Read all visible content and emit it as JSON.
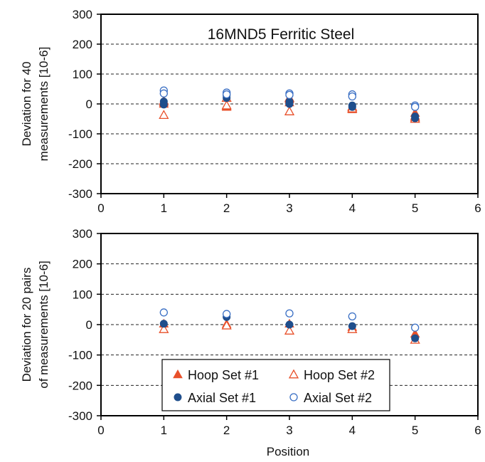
{
  "chart_data": [
    {
      "type": "scatter",
      "title": "16MND5 Ferritic Steel",
      "ylabel_lines": [
        "Deviation for 40",
        "measurements [10-6]"
      ],
      "xlabel": "",
      "xlim": [
        0,
        6
      ],
      "ylim": [
        -300,
        300
      ],
      "xticks": [
        "0",
        "1",
        "2",
        "3",
        "4",
        "5",
        "6"
      ],
      "yticks": [
        "300",
        "200",
        "100",
        "0",
        "-100",
        "-200",
        "-300"
      ],
      "grid": "horizontal dashed",
      "series": [
        {
          "name": "Hoop Set #1",
          "marker": "triangle-filled",
          "color": "#e8502a",
          "x": [
            1,
            1,
            2,
            2,
            3,
            3,
            4,
            4,
            5,
            5
          ],
          "y": [
            5,
            0,
            -8,
            -10,
            15,
            5,
            -15,
            -18,
            -30,
            -40
          ]
        },
        {
          "name": "Hoop Set #2",
          "marker": "triangle-open",
          "color": "#e8502a",
          "x": [
            1,
            1,
            2,
            2,
            3,
            3,
            4,
            4,
            5,
            5
          ],
          "y": [
            10,
            -37,
            20,
            -5,
            20,
            -25,
            -10,
            -15,
            -45,
            -50
          ]
        },
        {
          "name": "Axial Set #1",
          "marker": "circle-filled",
          "color": "#1f4e8c",
          "x": [
            1,
            1,
            2,
            2,
            3,
            3,
            4,
            4,
            5,
            5
          ],
          "y": [
            8,
            -2,
            28,
            20,
            8,
            0,
            -5,
            -10,
            -42,
            -48
          ]
        },
        {
          "name": "Axial Set #2",
          "marker": "circle-open",
          "color": "#3a6fc4",
          "x": [
            1,
            1,
            2,
            2,
            3,
            3,
            4,
            4,
            5,
            5
          ],
          "y": [
            45,
            35,
            38,
            32,
            35,
            30,
            32,
            25,
            -5,
            -10
          ]
        }
      ]
    },
    {
      "type": "scatter",
      "title": "",
      "ylabel_lines": [
        "Deviation for 20 pairs",
        "of measurements [10-6]"
      ],
      "xlabel": "Position",
      "xlim": [
        0,
        6
      ],
      "ylim": [
        -300,
        300
      ],
      "xticks": [
        "0",
        "1",
        "2",
        "3",
        "4",
        "5",
        "6"
      ],
      "yticks": [
        "300",
        "200",
        "100",
        "0",
        "-100",
        "-200",
        "-300"
      ],
      "grid": "horizontal dashed",
      "legend": "bottom-center",
      "series": [
        {
          "name": "Hoop Set #1",
          "marker": "triangle-filled",
          "color": "#e8502a",
          "x": [
            1,
            2,
            3,
            4,
            5
          ],
          "y": [
            3,
            2,
            3,
            -8,
            -30
          ]
        },
        {
          "name": "Hoop Set #2",
          "marker": "triangle-open",
          "color": "#e8502a",
          "x": [
            1,
            2,
            3,
            4,
            5
          ],
          "y": [
            -15,
            -3,
            -20,
            -15,
            -50
          ]
        },
        {
          "name": "Axial Set #1",
          "marker": "circle-filled",
          "color": "#1f4e8c",
          "x": [
            1,
            2,
            3,
            4,
            5
          ],
          "y": [
            3,
            25,
            0,
            -5,
            -45
          ]
        },
        {
          "name": "Axial Set #2",
          "marker": "circle-open",
          "color": "#3a6fc4",
          "x": [
            1,
            2,
            3,
            4,
            5
          ],
          "y": [
            40,
            35,
            37,
            27,
            -10
          ]
        }
      ]
    }
  ]
}
